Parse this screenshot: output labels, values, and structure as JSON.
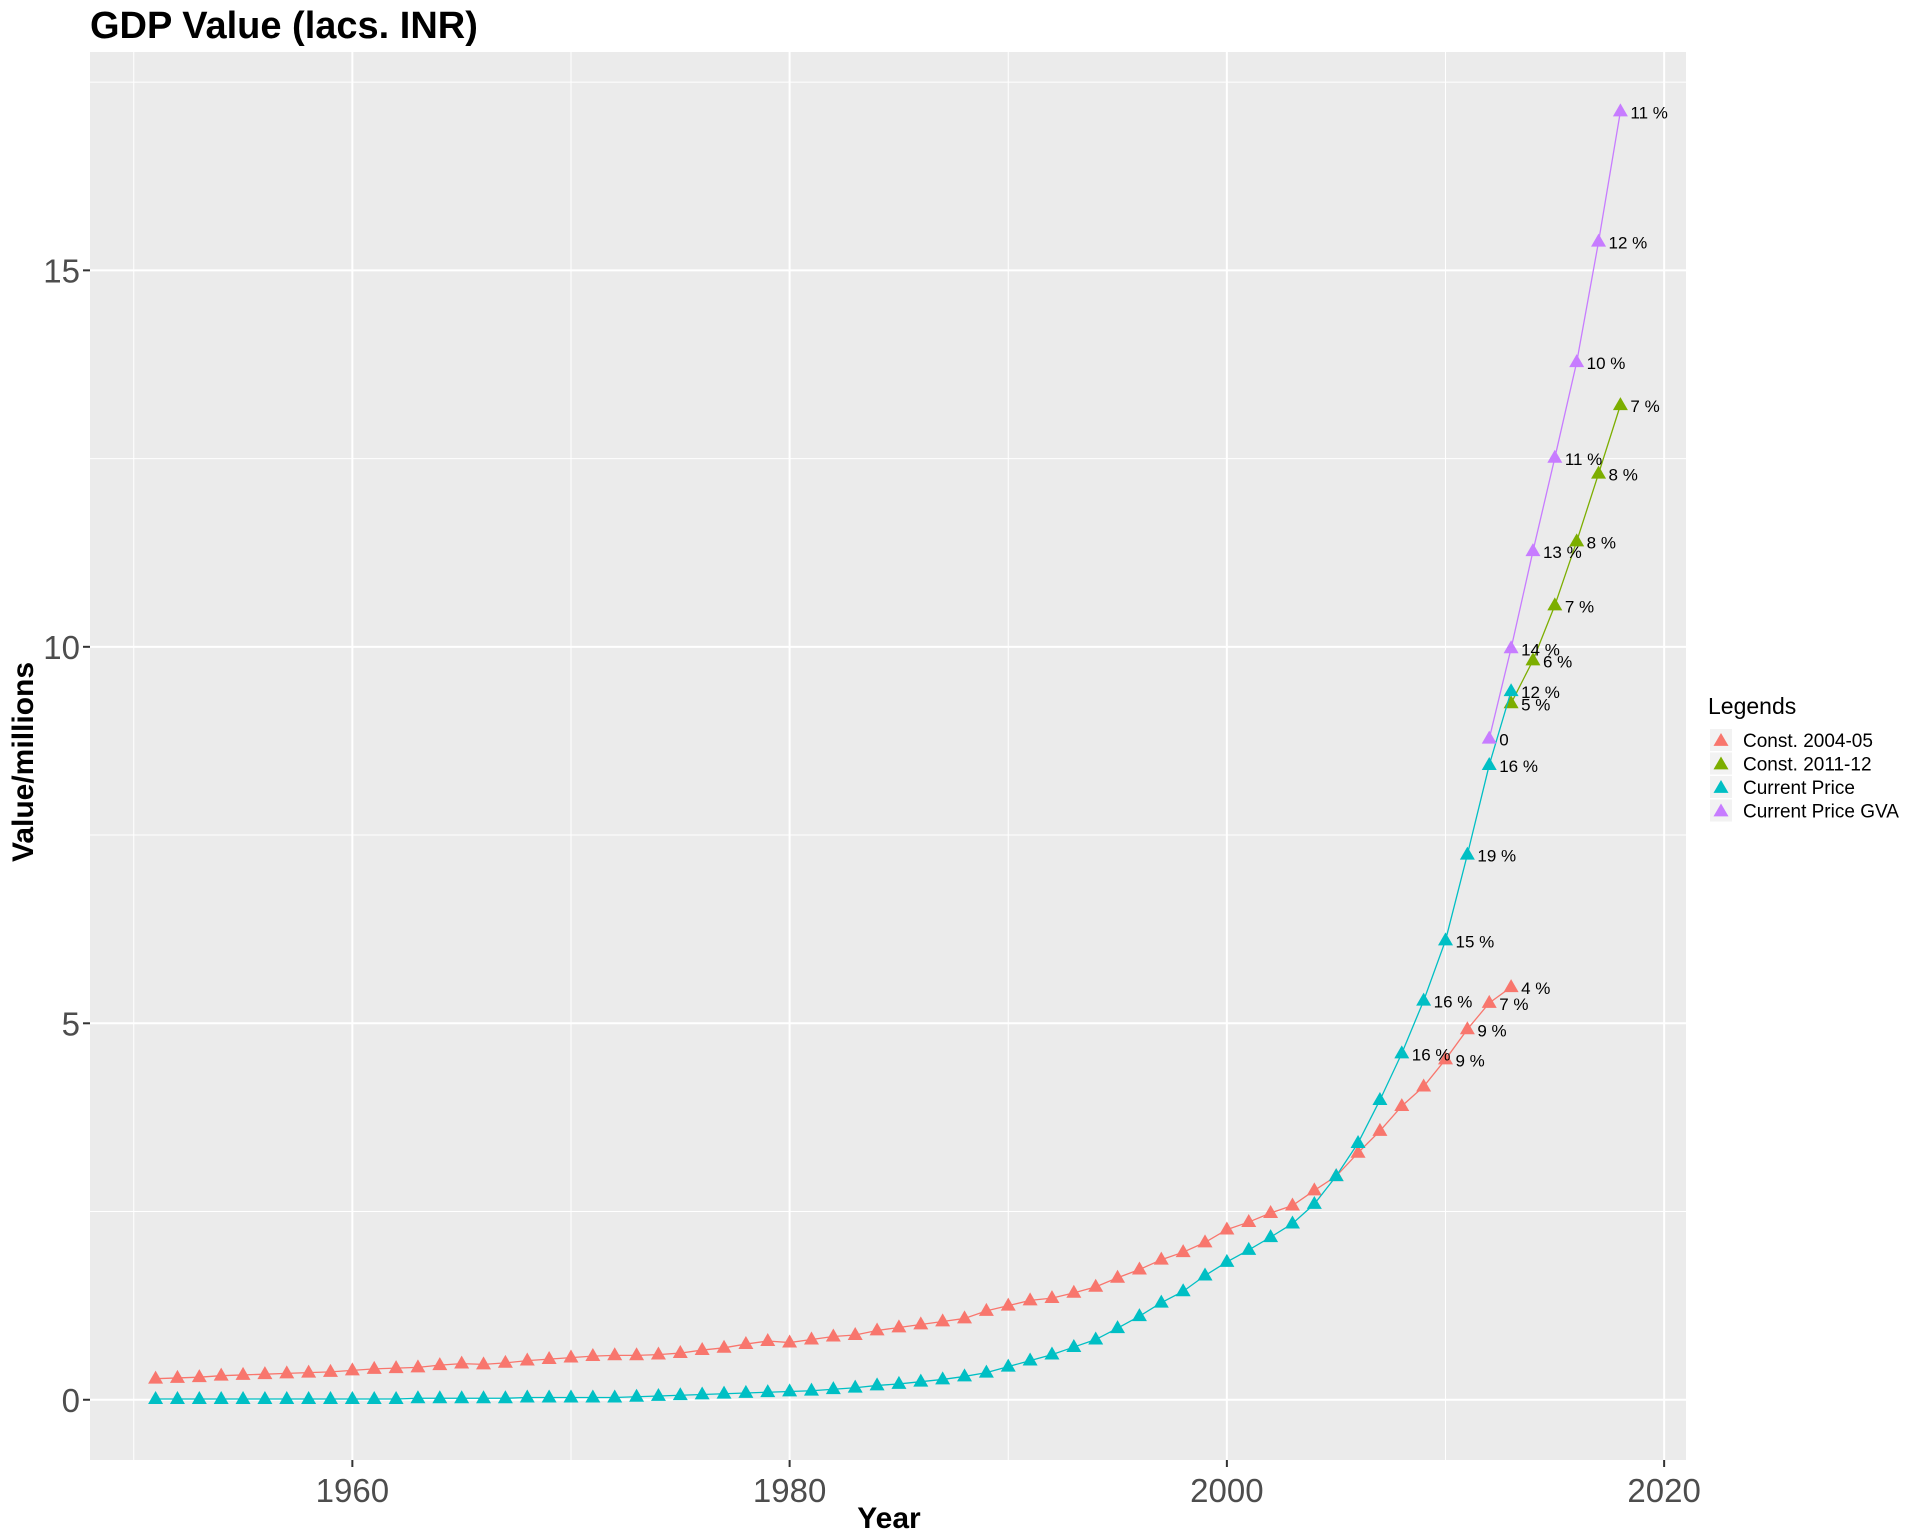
{
  "chart_data": {
    "type": "line",
    "title": "GDP Value (lacs. INR)",
    "xlabel": "Year",
    "ylabel": "Value/millions",
    "xlim": [
      1948,
      2021
    ],
    "ylim": [
      -0.8,
      17.9
    ],
    "x_ticks": [
      1960,
      1980,
      2000,
      2020
    ],
    "y_ticks": [
      0,
      5,
      10,
      15
    ],
    "grid": true,
    "legend": {
      "title": "Legends",
      "position": "right",
      "entries": [
        "Const. 2004-05",
        "Const. 2011-12",
        "Current Price",
        "Current Price GVA"
      ]
    },
    "series": [
      {
        "name": "Const. 2004-05",
        "color": "#F8766D",
        "x": [
          1951,
          1952,
          1953,
          1954,
          1955,
          1956,
          1957,
          1958,
          1959,
          1960,
          1961,
          1962,
          1963,
          1964,
          1965,
          1966,
          1967,
          1968,
          1969,
          1970,
          1971,
          1972,
          1973,
          1974,
          1975,
          1976,
          1977,
          1978,
          1979,
          1980,
          1981,
          1982,
          1983,
          1984,
          1985,
          1986,
          1987,
          1988,
          1989,
          1990,
          1991,
          1992,
          1993,
          1994,
          1995,
          1996,
          1997,
          1998,
          1999,
          2000,
          2001,
          2002,
          2003,
          2004,
          2005,
          2006,
          2007,
          2008,
          2009,
          2010,
          2011,
          2012,
          2013
        ],
        "y": [
          0.28,
          0.29,
          0.3,
          0.32,
          0.33,
          0.34,
          0.35,
          0.36,
          0.37,
          0.39,
          0.41,
          0.42,
          0.43,
          0.46,
          0.48,
          0.47,
          0.49,
          0.52,
          0.54,
          0.56,
          0.58,
          0.59,
          0.59,
          0.6,
          0.62,
          0.66,
          0.69,
          0.74,
          0.78,
          0.76,
          0.8,
          0.84,
          0.86,
          0.92,
          0.96,
          1.0,
          1.04,
          1.08,
          1.18,
          1.25,
          1.32,
          1.35,
          1.42,
          1.5,
          1.62,
          1.73,
          1.86,
          1.96,
          2.09,
          2.26,
          2.36,
          2.48,
          2.58,
          2.78,
          2.97,
          3.28,
          3.57,
          3.9,
          4.16,
          4.52,
          4.92,
          5.27,
          5.48
        ],
        "labels": [
          {
            "x": 2010,
            "text": "9 %"
          },
          {
            "x": 2011,
            "text": "9 %"
          },
          {
            "x": 2012,
            "text": "7 %"
          },
          {
            "x": 2013,
            "text": "4 %"
          }
        ]
      },
      {
        "name": "Const. 2011-12",
        "color": "#7CAE00",
        "x": [
          2013,
          2014,
          2015,
          2016,
          2017,
          2018
        ],
        "y": [
          9.25,
          9.82,
          10.55,
          11.4,
          12.3,
          13.21
        ],
        "labels": [
          {
            "x": 2013,
            "text": "5 %"
          },
          {
            "x": 2014,
            "text": "6 %"
          },
          {
            "x": 2015,
            "text": "7 %"
          },
          {
            "x": 2016,
            "text": "8 %"
          },
          {
            "x": 2017,
            "text": "8 %"
          },
          {
            "x": 2018,
            "text": "7 %"
          }
        ]
      },
      {
        "name": "Current Price",
        "color": "#00BFC4",
        "x": [
          1951,
          1952,
          1953,
          1954,
          1955,
          1956,
          1957,
          1958,
          1959,
          1960,
          1961,
          1962,
          1963,
          1964,
          1965,
          1966,
          1967,
          1968,
          1969,
          1970,
          1971,
          1972,
          1973,
          1974,
          1975,
          1976,
          1977,
          1978,
          1979,
          1980,
          1981,
          1982,
          1983,
          1984,
          1985,
          1986,
          1987,
          1988,
          1989,
          1990,
          1991,
          1992,
          1993,
          1994,
          1995,
          1996,
          1997,
          1998,
          1999,
          2000,
          2001,
          2002,
          2003,
          2004,
          2005,
          2006,
          2007,
          2008,
          2009,
          2010,
          2011,
          2012,
          2013
        ],
        "y": [
          0.01,
          0.01,
          0.01,
          0.01,
          0.01,
          0.01,
          0.01,
          0.01,
          0.01,
          0.01,
          0.01,
          0.01,
          0.02,
          0.02,
          0.02,
          0.02,
          0.02,
          0.03,
          0.03,
          0.03,
          0.03,
          0.03,
          0.04,
          0.05,
          0.06,
          0.07,
          0.08,
          0.09,
          0.1,
          0.11,
          0.12,
          0.14,
          0.16,
          0.19,
          0.21,
          0.24,
          0.27,
          0.31,
          0.36,
          0.44,
          0.52,
          0.6,
          0.7,
          0.8,
          0.95,
          1.11,
          1.29,
          1.44,
          1.65,
          1.83,
          1.99,
          2.16,
          2.34,
          2.6,
          2.97,
          3.41,
          3.98,
          4.6,
          5.3,
          6.1,
          7.24,
          8.43,
          9.41
        ],
        "labels": [
          {
            "x": 2008,
            "text": "16 %"
          },
          {
            "x": 2009,
            "text": "16 %"
          },
          {
            "x": 2010,
            "text": "15 %"
          },
          {
            "x": 2011,
            "text": "19 %"
          },
          {
            "x": 2012,
            "text": "16 %"
          },
          {
            "x": 2013,
            "text": "12 %"
          }
        ]
      },
      {
        "name": "Current Price GVA",
        "color": "#C77CFF",
        "x": [
          2012,
          2013,
          2014,
          2015,
          2016,
          2017,
          2018
        ],
        "y": [
          8.78,
          9.98,
          11.27,
          12.51,
          13.78,
          15.38,
          17.11
        ],
        "labels": [
          {
            "x": 2012,
            "text": "0"
          },
          {
            "x": 2013,
            "text": "14 %"
          },
          {
            "x": 2014,
            "text": "13 %"
          },
          {
            "x": 2015,
            "text": "11 %"
          },
          {
            "x": 2016,
            "text": "10 %"
          },
          {
            "x": 2017,
            "text": "12 %"
          },
          {
            "x": 2018,
            "text": "11 %"
          }
        ]
      }
    ]
  }
}
